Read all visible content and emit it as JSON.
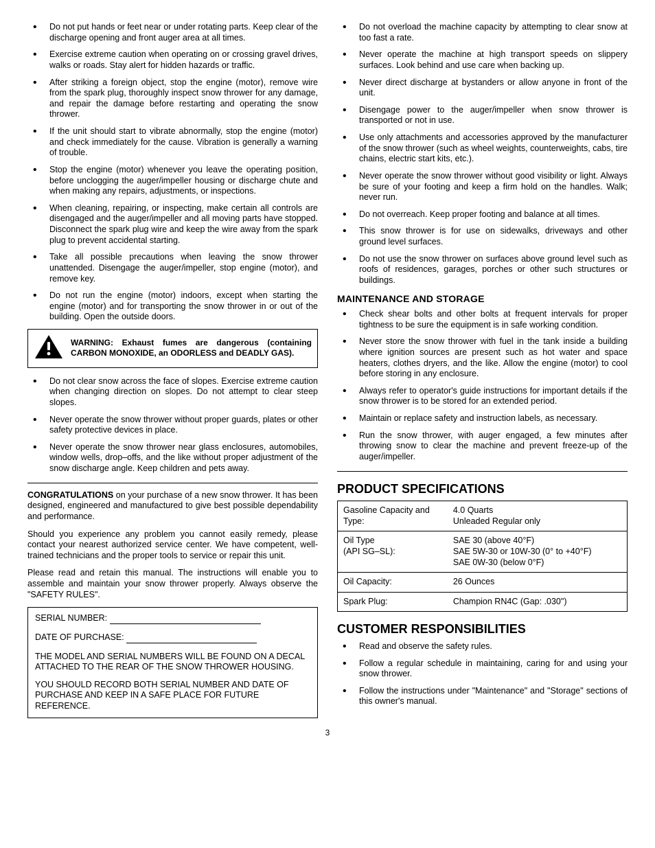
{
  "left": {
    "bullets_top": [
      "Do not put hands or feet near or under rotating parts. Keep clear of the discharge opening and front auger area at all times.",
      "Exercise extreme caution when operating on or crossing gravel drives, walks or roads. Stay alert for hidden hazards or traffic.",
      "After striking a foreign object, stop the engine (motor), remove wire from the spark plug, thoroughly inspect snow thrower for any damage, and repair the damage before restarting and operating the snow thrower.",
      "If the unit should start to vibrate abnormally, stop the engine (motor) and check immediately for the cause. Vibration is generally a warning of trouble.",
      "Stop the engine (motor) whenever you leave the operating position, before unclogging the auger/impeller housing or discharge chute and when making any repairs, adjustments, or inspections.",
      "When cleaning, repairing, or inspecting, make certain all controls are disengaged and the auger/impeller and all moving parts have stopped. Disconnect the spark plug wire and keep the wire away from the spark plug to prevent accidental starting.",
      "Take all possible precautions when leaving the snow thrower unattended. Disengage the auger/impeller, stop engine (motor), and remove key.",
      "Do not run the engine (motor) indoors, except when starting the engine (motor) and for transporting the snow thrower in or out of the building. Open the outside doors."
    ],
    "warning": "WARNING:  Exhaust fumes are dangerous (containing CARBON MONOXIDE, an ODORLESS and DEADLY GAS).",
    "bullets_mid": [
      "Do not clear snow across the face of slopes. Exercise extreme caution when changing direction on slopes. Do not attempt to clear steep slopes.",
      "Never operate the snow thrower without proper guards, plates or other safety protective devices in place.",
      "Never operate the snow thrower near glass enclosures, automobiles, window wells, drop–offs, and the like without proper adjustment of the snow discharge angle. Keep children and pets away."
    ],
    "congrats_lead": "CONGRATULATIONS",
    "congrats_text": " on your purchase of a new snow thrower.  It has been designed, engineered and manufactured to give best possible dependability and performance.",
    "para2": "Should you experience any problem you cannot easily remedy, please contact your nearest authorized service center.  We have competent, well-trained technicians and the proper tools to service or repair this unit.",
    "para3": "Please read and retain this manual.  The instructions will enable you to assemble and maintain your snow thrower properly.  Always observe the \"SAFETY RULES\".",
    "serial_label": "SERIAL NUMBER: ",
    "date_label": "DATE OF PURCHASE:  ",
    "serial_note1": "THE MODEL AND SERIAL NUMBERS WILL BE FOUND ON A DECAL ATTACHED TO THE REAR OF THE SNOW THROWER HOUSING.",
    "serial_note2": "YOU SHOULD RECORD BOTH SERIAL NUMBER AND DATE OF PURCHASE AND KEEP IN A SAFE PLACE FOR FUTURE REFERENCE."
  },
  "right": {
    "bullets_top": [
      "Do not overload the machine capacity by attempting to clear snow at too fast a rate.",
      "Never operate the machine at high transport speeds on slippery surfaces. Look behind and use care when backing up.",
      "Never direct discharge at bystanders or allow anyone in front of the unit.",
      "Disengage power to the auger/impeller when snow thrower is transported or not in use.",
      "Use only attachments and accessories approved by the manufacturer of the snow thrower (such as wheel weights, counterweights, cabs, tire chains, electric start kits, etc.).",
      "Never operate the snow thrower without good visibility or light. Always be sure of your footing and keep a firm hold on the handles. Walk; never run.",
      "Do not overreach. Keep proper footing and balance at all times.",
      "This snow thrower is for use on sidewalks, driveways and other ground level surfaces.",
      "Do not use the snow thrower on surfaces above ground level such as roofs of residences, garages, porches or other such structures or buildings."
    ],
    "maint_heading": "MAINTENANCE AND STORAGE",
    "bullets_maint": [
      "Check shear bolts and other bolts at frequent intervals for proper tightness to be sure the equipment is in safe working condition.",
      "Never store the snow thrower with fuel in the tank inside a building where ignition sources are present such as hot water and space heaters, clothes dryers, and the like. Allow the engine (motor) to cool before storing in any enclosure.",
      "Always refer to operator's guide instructions for important details if the snow thrower is to be stored for an extended period.",
      "Maintain or replace safety and instruction labels, as necessary.",
      "Run the snow thrower, with auger engaged, a few minutes after throwing snow to clear the machine and prevent freeze-up of the auger/impeller."
    ],
    "spec_heading": "PRODUCT SPECIFICATIONS",
    "spec_rows": [
      {
        "label": "Gasoline Capacity and Type:",
        "value": "4.0 Quarts\nUnleaded Regular only"
      },
      {
        "label": "Oil Type\n(API SG–SL):",
        "value": "SAE 30 (above 40°F)\nSAE 5W-30 or 10W-30 (0° to +40°F)\nSAE 0W-30 (below 0°F)"
      },
      {
        "label": "Oil Capacity:",
        "value": "26 Ounces"
      },
      {
        "label": "Spark Plug:",
        "value": "Champion RN4C (Gap:  .030\")"
      }
    ],
    "cust_heading": "CUSTOMER RESPONSIBILITIES",
    "bullets_cust": [
      "Read and observe the safety rules.",
      "Follow a regular schedule in maintaining, caring for and using your snow thrower.",
      "Follow the instructions under \"Maintenance\" and \"Storage\" sections of this owner's manual."
    ]
  },
  "page_number": "3"
}
